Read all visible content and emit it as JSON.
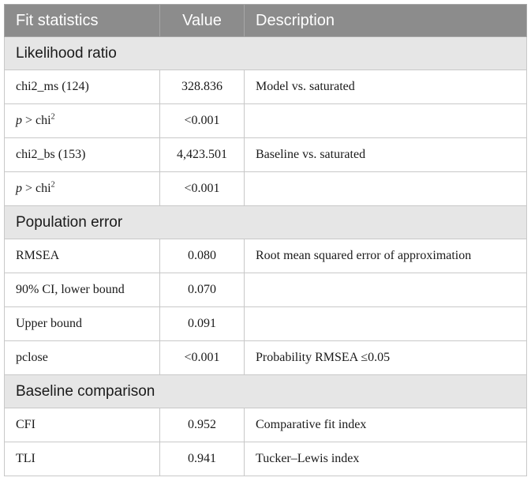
{
  "header": {
    "col1": "Fit statistics",
    "col2": "Value",
    "col3": "Description"
  },
  "sections": {
    "likelihood": {
      "title": "Likelihood ratio",
      "rows": [
        {
          "stat": "chi2_ms (124)",
          "value": "328.836",
          "desc": "Model vs. saturated"
        },
        {
          "stat_p": "p",
          "stat_rest": " > chi",
          "stat_sup": "2",
          "value": "<0.001",
          "desc": ""
        },
        {
          "stat": "chi2_bs (153)",
          "value": "4,423.501",
          "desc": "Baseline vs. saturated"
        },
        {
          "stat_p": "p",
          "stat_rest": " > chi",
          "stat_sup": "2",
          "value": "<0.001",
          "desc": ""
        }
      ]
    },
    "population": {
      "title": "Population error",
      "rows": [
        {
          "stat": "RMSEA",
          "value": "0.080",
          "desc": "Root mean squared error of approximation"
        },
        {
          "stat": "90% CI, lower bound",
          "value": "0.070",
          "desc": ""
        },
        {
          "stat": "Upper bound",
          "value": "0.091",
          "desc": ""
        },
        {
          "stat": "pclose",
          "value": "<0.001",
          "desc": "Probability RMSEA ≤0.05"
        }
      ]
    },
    "baseline": {
      "title": "Baseline comparison",
      "rows": [
        {
          "stat": "CFI",
          "value": "0.952",
          "desc": "Comparative fit index"
        },
        {
          "stat": "TLI",
          "value": "0.941",
          "desc": "Tucker–Lewis index"
        }
      ]
    }
  }
}
